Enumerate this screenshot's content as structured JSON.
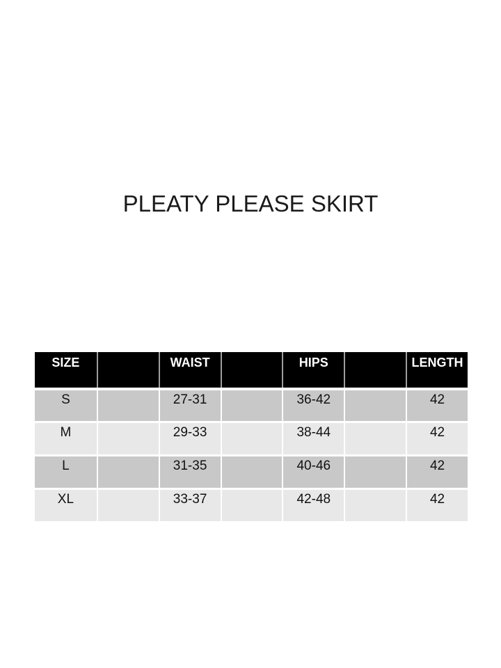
{
  "title": "PLEATY PLEASE SKIRT",
  "size_chart": {
    "header": {
      "size": "SIZE",
      "waist": "WAIST",
      "hips": "HIPS",
      "length": "LENGTH"
    },
    "rows": [
      {
        "size": "S",
        "waist": "27-31",
        "hips": "36-42",
        "length": "42"
      },
      {
        "size": "M",
        "waist": "29-33",
        "hips": "38-44",
        "length": "42"
      },
      {
        "size": "L",
        "waist": "31-35",
        "hips": "40-46",
        "length": "42"
      },
      {
        "size": "XL",
        "waist": "33-37",
        "hips": "42-48",
        "length": "42"
      }
    ],
    "colors": {
      "header_bg": "#000000",
      "header_text": "#ffffff",
      "row_band_dark": "#c8c8c8",
      "row_band_light": "#e8e8e8",
      "grid_line": "#ffffff",
      "header_divider": "#9e9e9e",
      "page_background": "#ffffff"
    }
  }
}
